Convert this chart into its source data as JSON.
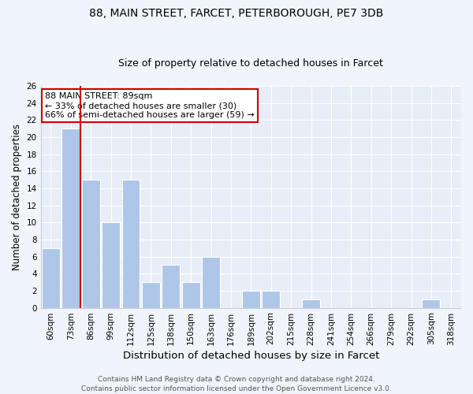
{
  "title1": "88, MAIN STREET, FARCET, PETERBOROUGH, PE7 3DB",
  "title2": "Size of property relative to detached houses in Farcet",
  "xlabel": "Distribution of detached houses by size in Farcet",
  "ylabel": "Number of detached properties",
  "bin_labels": [
    "60sqm",
    "73sqm",
    "86sqm",
    "99sqm",
    "112sqm",
    "125sqm",
    "138sqm",
    "150sqm",
    "163sqm",
    "176sqm",
    "189sqm",
    "202sqm",
    "215sqm",
    "228sqm",
    "241sqm",
    "254sqm",
    "266sqm",
    "279sqm",
    "292sqm",
    "305sqm",
    "318sqm"
  ],
  "bar_values": [
    7,
    21,
    15,
    10,
    15,
    3,
    5,
    3,
    6,
    0,
    2,
    2,
    0,
    1,
    0,
    0,
    0,
    0,
    0,
    1,
    0
  ],
  "bar_color": "#aec6e8",
  "bar_edge_color": "#ffffff",
  "subject_line_color": "#cc0000",
  "annotation_text": "88 MAIN STREET: 89sqm\n← 33% of detached houses are smaller (30)\n66% of semi-detached houses are larger (59) →",
  "annotation_box_color": "#ffffff",
  "annotation_box_edge": "#cc0000",
  "ylim": [
    0,
    26
  ],
  "yticks": [
    0,
    2,
    4,
    6,
    8,
    10,
    12,
    14,
    16,
    18,
    20,
    22,
    24,
    26
  ],
  "background_color": "#e8eef7",
  "fig_background_color": "#f0f4fb",
  "footer_text": "Contains HM Land Registry data © Crown copyright and database right 2024.\nContains public sector information licensed under the Open Government Licence v3.0.",
  "title1_fontsize": 10,
  "title2_fontsize": 9,
  "xlabel_fontsize": 9.5,
  "ylabel_fontsize": 8.5,
  "tick_fontsize": 7.5,
  "annotation_fontsize": 8,
  "footer_fontsize": 6.5
}
